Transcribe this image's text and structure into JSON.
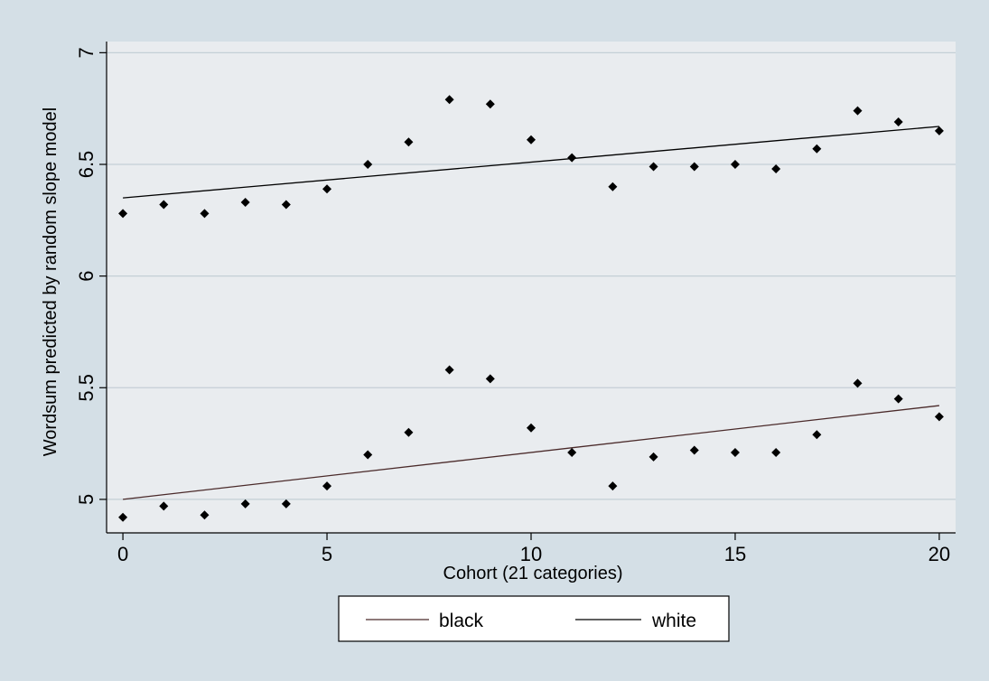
{
  "colors": {
    "outer_background": "#d4dfe6",
    "plot_background": "#e9ecef",
    "gridline": "#c4cfd6",
    "white_marker": "#000000",
    "black_marker": "#000000",
    "black_fit_line": "#4a2a2a",
    "white_fit_line": "#000000"
  },
  "chart_data": {
    "type": "scatter",
    "title": "",
    "xlabel": "Cohort (21 categories)",
    "ylabel": "Wordsum predicted by random slope model",
    "xlim": [
      -0.4,
      20.4
    ],
    "ylim": [
      4.85,
      7.05
    ],
    "xticks": [
      0,
      5,
      10,
      15,
      20
    ],
    "yticks": [
      5,
      5.5,
      6,
      6.5,
      7
    ],
    "xtick_labels": [
      "0",
      "5",
      "10",
      "15",
      "20"
    ],
    "ytick_labels": [
      "5",
      "5.5",
      "6",
      "6.5",
      "7"
    ],
    "grid": "horizontal",
    "legend_position": "bottom",
    "legend": [
      "black",
      "white"
    ],
    "series": [
      {
        "name": "white",
        "kind": "points",
        "marker": "diamond",
        "x": [
          0,
          1,
          2,
          3,
          4,
          5,
          6,
          7,
          8,
          9,
          10,
          11,
          12,
          13,
          14,
          15,
          16,
          17,
          18,
          19,
          20
        ],
        "y": [
          6.28,
          6.32,
          6.28,
          6.33,
          6.32,
          6.39,
          6.5,
          6.6,
          6.79,
          6.77,
          6.61,
          6.53,
          6.4,
          6.49,
          6.49,
          6.5,
          6.48,
          6.57,
          6.74,
          6.69,
          6.65
        ]
      },
      {
        "name": "black",
        "kind": "points",
        "marker": "diamond",
        "x": [
          0,
          1,
          2,
          3,
          4,
          5,
          6,
          7,
          8,
          9,
          10,
          11,
          12,
          13,
          14,
          15,
          16,
          17,
          18,
          19,
          20
        ],
        "y": [
          4.92,
          4.97,
          4.93,
          4.98,
          4.98,
          5.06,
          5.2,
          5.3,
          5.58,
          5.54,
          5.32,
          5.21,
          5.06,
          5.19,
          5.22,
          5.21,
          5.21,
          5.29,
          5.52,
          5.45,
          5.37
        ]
      },
      {
        "name": "black",
        "kind": "line",
        "x": [
          0,
          20
        ],
        "y": [
          5.0,
          5.42
        ]
      },
      {
        "name": "white",
        "kind": "line",
        "x": [
          0,
          20
        ],
        "y": [
          6.35,
          6.67
        ]
      }
    ]
  }
}
